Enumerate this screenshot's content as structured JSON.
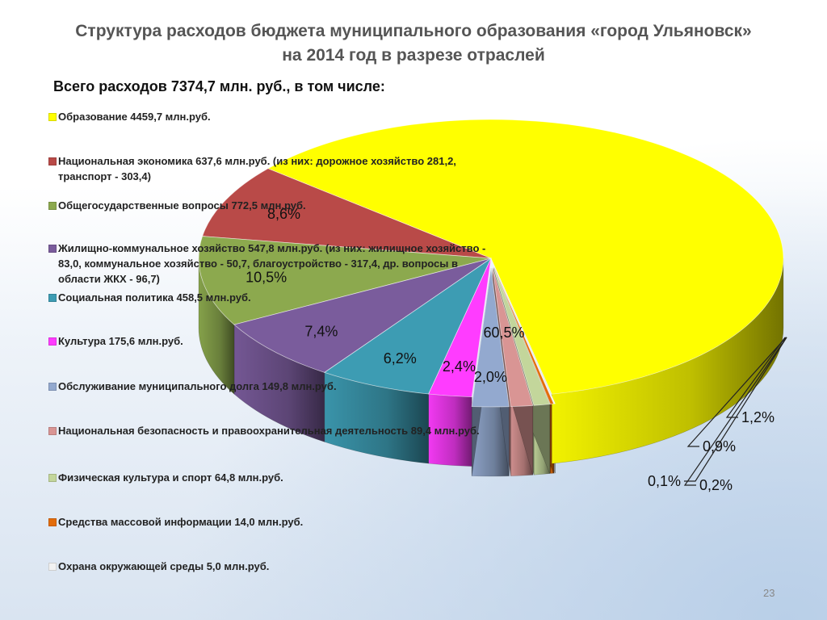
{
  "slide": {
    "title_line1": "Структура расходов бюджета муниципального образования «город Ульяновск»",
    "title_line2": "на 2014 год в разрезе отраслей",
    "subtitle": "Всего расходов 7374,7 млн. руб., в том числе:",
    "page_number": "23"
  },
  "chart_data": {
    "type": "pie",
    "title": "Структура расходов бюджета муниципального образования «город Ульяновск» на 2014 год в разрезе отраслей",
    "total_label": "Всего расходов 7374,7 млн. руб., в том числе:",
    "slices": [
      {
        "legend": "Образование 4459,7 млн.руб.",
        "value": 4459.7,
        "label": "60,5%",
        "color": "#ffff00"
      },
      {
        "legend": "Национальная экономика 637,6 млн.руб. (из них: дорожное хозяйство 281,2, транспорт - 303,4)",
        "value": 637.6,
        "label": "8,6%",
        "color": "#b94a48"
      },
      {
        "legend": "Общегосударственные вопросы 772,5 млн.руб.",
        "value": 772.5,
        "label": "10,5%",
        "color": "#8ca94e"
      },
      {
        "legend": "Жилищно-коммунальное хозяйство 547,8 млн.руб. (из них: жилищное хозяйство - 83,0, коммунальное хозяйство - 50,7, благоустройство - 317,4, др. вопросы в области ЖКХ - 96,7)",
        "value": 547.8,
        "label": "7,4%",
        "color": "#7a5c9c"
      },
      {
        "legend": "Социальная политика 458,5 млн.руб.",
        "value": 458.5,
        "label": "6,2%",
        "color": "#3d9cb3"
      },
      {
        "legend": "Культура 175,6 млн.руб.",
        "value": 175.6,
        "label": "2,4%",
        "color": "#ff3cff"
      },
      {
        "legend": "Обслуживание муниципального долга 149,8 млн.руб.",
        "value": 149.8,
        "label": "2,0%",
        "color": "#93a9cf"
      },
      {
        "legend": "Национальная безопасность и правоохранительная деятельность 89,4 млн.руб.",
        "value": 89.4,
        "label": "1,2%",
        "color": "#d99594"
      },
      {
        "legend": "Физическая культура и спорт 64,8 млн.руб.",
        "value": 64.8,
        "label": "0,9%",
        "color": "#c3d69b"
      },
      {
        "legend": "Средства массовой информации 14,0 млн.руб.",
        "value": 14.0,
        "label": "0,2%",
        "color": "#e36c0a"
      },
      {
        "legend": "Охрана окружающей среды 5,0 млн.руб.",
        "value": 5.0,
        "label": "0,1%",
        "color": "#f2f2f2"
      }
    ],
    "legend_position": "left"
  }
}
